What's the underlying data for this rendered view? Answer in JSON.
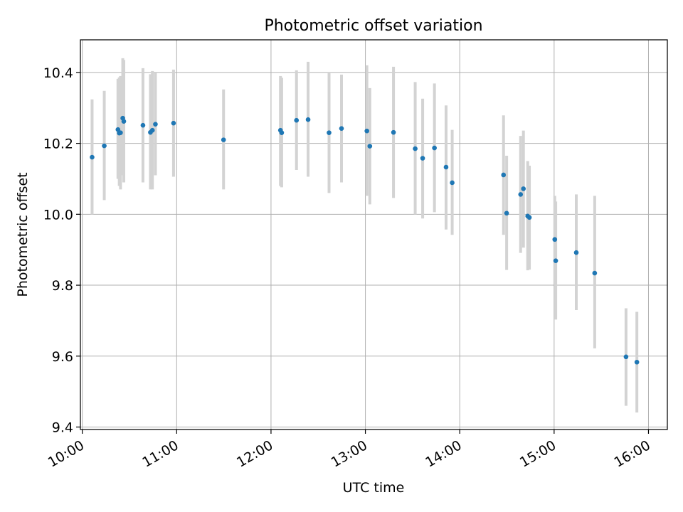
{
  "chart_data": {
    "type": "scatter",
    "title": "Photometric offset variation",
    "xlabel": "UTC time",
    "ylabel": "Photometric offset",
    "x_unit": "hours (UTC, decimal)",
    "xlim": [
      9.98,
      16.2
    ],
    "ylim": [
      9.393,
      10.492
    ],
    "grid": true,
    "legend": "none",
    "x_ticks": [
      {
        "value": 10,
        "label": "10:00"
      },
      {
        "value": 11,
        "label": "11:00"
      },
      {
        "value": 12,
        "label": "12:00"
      },
      {
        "value": 13,
        "label": "13:00"
      },
      {
        "value": 14,
        "label": "14:00"
      },
      {
        "value": 15,
        "label": "15:00"
      },
      {
        "value": 16,
        "label": "16:00"
      }
    ],
    "y_ticks": [
      {
        "value": 9.4,
        "label": "9.4"
      },
      {
        "value": 9.6,
        "label": "9.6"
      },
      {
        "value": 9.8,
        "label": "9.8"
      },
      {
        "value": 10.0,
        "label": "10.0"
      },
      {
        "value": 10.2,
        "label": "10.2"
      },
      {
        "value": 10.4,
        "label": "10.4"
      }
    ],
    "colors": {
      "points": "#1f77b4",
      "errorbars": "#d3d3d3",
      "grid": "#b0b0b0"
    },
    "points": [
      {
        "x": 10.104,
        "y": 10.161,
        "lo": 10.0,
        "hi": 10.324
      },
      {
        "x": 10.233,
        "y": 10.193,
        "lo": 10.04,
        "hi": 10.348
      },
      {
        "x": 10.378,
        "y": 10.239,
        "lo": 10.1,
        "hi": 10.382
      },
      {
        "x": 10.392,
        "y": 10.229,
        "lo": 10.08,
        "hi": 10.386
      },
      {
        "x": 10.405,
        "y": 10.23,
        "lo": 10.07,
        "hi": 10.39
      },
      {
        "x": 10.429,
        "y": 10.271,
        "lo": 10.11,
        "hi": 10.44
      },
      {
        "x": 10.44,
        "y": 10.262,
        "lo": 10.09,
        "hi": 10.435
      },
      {
        "x": 10.643,
        "y": 10.251,
        "lo": 10.09,
        "hi": 10.412
      },
      {
        "x": 10.722,
        "y": 10.231,
        "lo": 10.07,
        "hi": 10.395
      },
      {
        "x": 10.743,
        "y": 10.237,
        "lo": 10.07,
        "hi": 10.404
      },
      {
        "x": 10.775,
        "y": 10.254,
        "lo": 10.11,
        "hi": 10.4
      },
      {
        "x": 10.967,
        "y": 10.257,
        "lo": 10.106,
        "hi": 10.408
      },
      {
        "x": 11.497,
        "y": 10.21,
        "lo": 10.07,
        "hi": 10.352
      },
      {
        "x": 12.1,
        "y": 10.237,
        "lo": 10.08,
        "hi": 10.39
      },
      {
        "x": 12.113,
        "y": 10.23,
        "lo": 10.076,
        "hi": 10.385
      },
      {
        "x": 12.27,
        "y": 10.265,
        "lo": 10.125,
        "hi": 10.406
      },
      {
        "x": 12.393,
        "y": 10.267,
        "lo": 10.106,
        "hi": 10.43
      },
      {
        "x": 12.615,
        "y": 10.23,
        "lo": 10.06,
        "hi": 10.398
      },
      {
        "x": 12.747,
        "y": 10.242,
        "lo": 10.09,
        "hi": 10.394
      },
      {
        "x": 13.016,
        "y": 10.235,
        "lo": 10.052,
        "hi": 10.42
      },
      {
        "x": 13.047,
        "y": 10.192,
        "lo": 10.028,
        "hi": 10.356
      },
      {
        "x": 13.298,
        "y": 10.231,
        "lo": 10.046,
        "hi": 10.416
      },
      {
        "x": 13.528,
        "y": 10.185,
        "lo": 10.0,
        "hi": 10.373
      },
      {
        "x": 13.607,
        "y": 10.158,
        "lo": 9.988,
        "hi": 10.326
      },
      {
        "x": 13.732,
        "y": 10.187,
        "lo": 10.006,
        "hi": 10.369
      },
      {
        "x": 13.855,
        "y": 10.133,
        "lo": 9.957,
        "hi": 10.307
      },
      {
        "x": 13.92,
        "y": 10.089,
        "lo": 9.942,
        "hi": 10.238
      },
      {
        "x": 14.464,
        "y": 10.111,
        "lo": 9.942,
        "hi": 10.279
      },
      {
        "x": 14.497,
        "y": 10.003,
        "lo": 9.843,
        "hi": 10.165
      },
      {
        "x": 14.645,
        "y": 10.056,
        "lo": 9.891,
        "hi": 10.221
      },
      {
        "x": 14.675,
        "y": 10.072,
        "lo": 9.906,
        "hi": 10.236
      },
      {
        "x": 14.72,
        "y": 9.995,
        "lo": 9.842,
        "hi": 10.15
      },
      {
        "x": 14.738,
        "y": 9.991,
        "lo": 9.844,
        "hi": 10.137
      },
      {
        "x": 15.007,
        "y": 9.929,
        "lo": 9.803,
        "hi": 10.052
      },
      {
        "x": 15.017,
        "y": 9.869,
        "lo": 9.703,
        "hi": 10.036
      },
      {
        "x": 15.235,
        "y": 9.892,
        "lo": 9.73,
        "hi": 10.056
      },
      {
        "x": 15.43,
        "y": 9.834,
        "lo": 9.622,
        "hi": 10.052
      },
      {
        "x": 15.762,
        "y": 9.598,
        "lo": 9.46,
        "hi": 9.735
      },
      {
        "x": 15.877,
        "y": 9.583,
        "lo": 9.441,
        "hi": 9.725
      }
    ]
  }
}
